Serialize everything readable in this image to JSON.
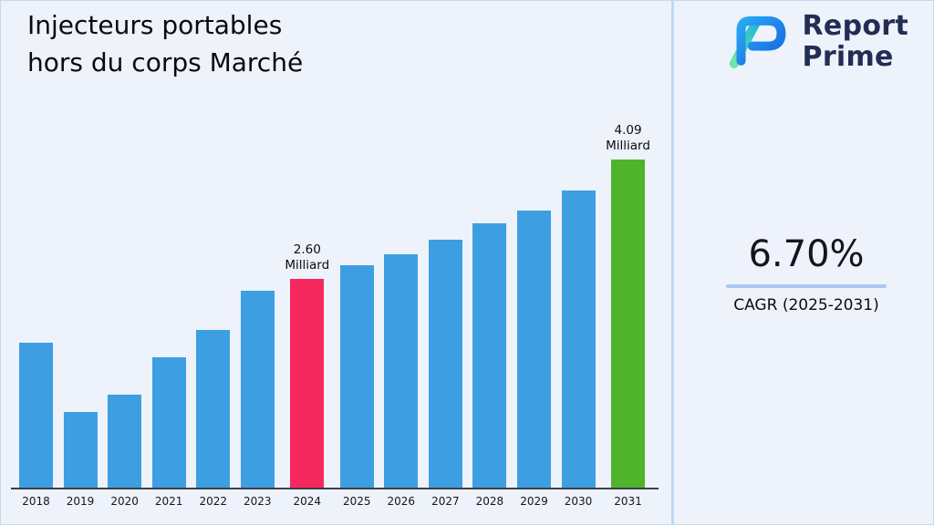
{
  "page": {
    "title_line1": "Injecteurs portables",
    "title_line2": "hors du corps Marché",
    "background_color": "#edf2fb"
  },
  "logo": {
    "brand_line1": "Report",
    "brand_line2": "Prime",
    "text_color": "#232d54",
    "icon_name": "report-prime-logo-icon",
    "icon_colors": {
      "blue_start": "#2aa7f5",
      "blue_end": "#1565e0",
      "teal_start": "#6fe6a8",
      "teal_end": "#1fb7d8"
    }
  },
  "stats": {
    "cagr_value": "6.70%",
    "cagr_label": "CAGR (2025-2031)",
    "underline_color": "#a9c9f2"
  },
  "chart_data": {
    "type": "bar",
    "title": "Injecteurs portables hors du corps Marché",
    "xlabel": "",
    "ylabel": "",
    "unit": "Milliard",
    "ylim": [
      0,
      4.5
    ],
    "grid": false,
    "legend": false,
    "categories": [
      "2018",
      "2019",
      "2020",
      "2021",
      "2022",
      "2023",
      "2024",
      "2025",
      "2026",
      "2027",
      "2028",
      "2029",
      "2030",
      "2031"
    ],
    "values": [
      1.81,
      0.94,
      1.16,
      1.63,
      1.97,
      2.46,
      2.6,
      2.77,
      2.91,
      3.09,
      3.29,
      3.46,
      3.71,
      4.09
    ],
    "bar_color_default": "#3d9fe2",
    "bar_colors": {
      "2024": "#f5295e",
      "2031": "#4fb32b"
    },
    "annotations": {
      "2024": [
        "2.60",
        "Milliard"
      ],
      "2031": [
        "4.09",
        "Milliard"
      ]
    }
  }
}
